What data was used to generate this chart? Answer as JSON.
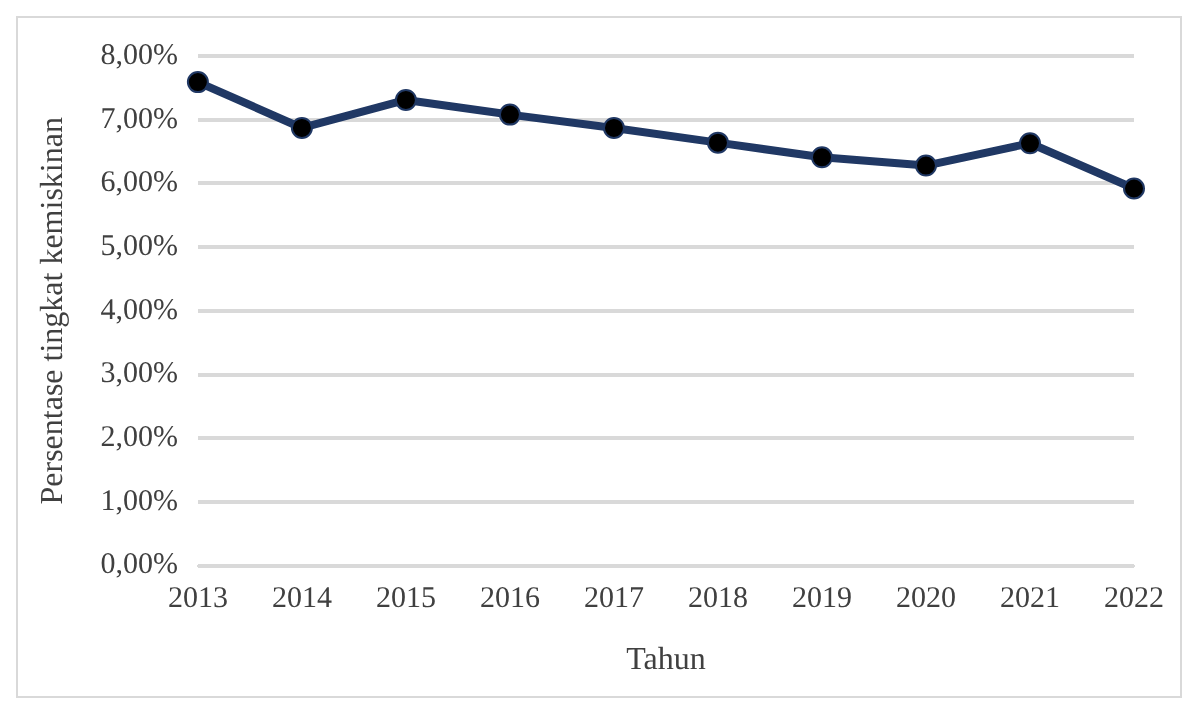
{
  "chart_data": {
    "type": "line",
    "xlabel": "Tahun",
    "ylabel": "Persentase tingkat kemiskinan",
    "categories": [
      "2013",
      "2014",
      "2015",
      "2016",
      "2017",
      "2018",
      "2019",
      "2020",
      "2021",
      "2022"
    ],
    "series": [
      {
        "color": "#203864",
        "values": [
          7.59,
          6.87,
          7.31,
          7.08,
          6.87,
          6.64,
          6.41,
          6.28,
          6.63,
          5.92
        ]
      }
    ],
    "ylim": [
      0,
      8
    ],
    "yticks": [
      {
        "value": 0,
        "label": "0,00%"
      },
      {
        "value": 1,
        "label": "1,00%"
      },
      {
        "value": 2,
        "label": "2,00%"
      },
      {
        "value": 3,
        "label": "3,00%"
      },
      {
        "value": 4,
        "label": "4,00%"
      },
      {
        "value": 5,
        "label": "5,00%"
      },
      {
        "value": 6,
        "label": "6,00%"
      },
      {
        "value": 7,
        "label": "7,00%"
      },
      {
        "value": 8,
        "label": "8,00%"
      }
    ],
    "grid": "y",
    "legend": false,
    "marker": "circle",
    "line_style": "solid"
  }
}
